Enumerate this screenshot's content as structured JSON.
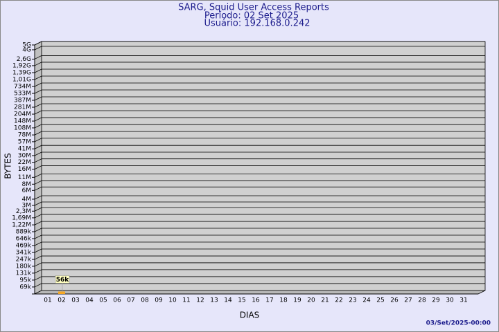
{
  "chart_data": {
    "type": "bar",
    "title": "SARG, Squid User Access Reports",
    "subtitle": [
      "Período: 02 Set 2025",
      "Usuário: 192.168.0.242"
    ],
    "x_label": "DIAS",
    "y_label": "BYTES",
    "footer": "03/Set/2025-00:00",
    "categories": [
      "01",
      "02",
      "03",
      "04",
      "05",
      "06",
      "07",
      "08",
      "09",
      "10",
      "11",
      "12",
      "13",
      "14",
      "15",
      "16",
      "17",
      "18",
      "19",
      "20",
      "21",
      "22",
      "23",
      "24",
      "25",
      "26",
      "27",
      "28",
      "29",
      "30",
      "31"
    ],
    "values": [
      null,
      56000,
      null,
      null,
      null,
      null,
      null,
      null,
      null,
      null,
      null,
      null,
      null,
      null,
      null,
      null,
      null,
      null,
      null,
      null,
      null,
      null,
      null,
      null,
      null,
      null,
      null,
      null,
      null,
      null,
      null
    ],
    "value_labels": [
      null,
      "56k",
      null,
      null,
      null,
      null,
      null,
      null,
      null,
      null,
      null,
      null,
      null,
      null,
      null,
      null,
      null,
      null,
      null,
      null,
      null,
      null,
      null,
      null,
      null,
      null,
      null,
      null,
      null,
      null,
      null
    ],
    "color": "#f5a623",
    "log_scale": true,
    "ylim": [
      50000,
      5000000000
    ],
    "yticks": [
      {
        "value": 5000000000,
        "label": "5G"
      },
      {
        "value": 4000000000,
        "label": "4G"
      },
      {
        "value": 2600000000,
        "label": "2,6G"
      },
      {
        "value": 1920000000,
        "label": "1,92G"
      },
      {
        "value": 1390000000,
        "label": "1,39G"
      },
      {
        "value": 1010000000,
        "label": "1,01G"
      },
      {
        "value": 734000000,
        "label": "734M"
      },
      {
        "value": 533000000,
        "label": "533M"
      },
      {
        "value": 387000000,
        "label": "387M"
      },
      {
        "value": 281000000,
        "label": "281M"
      },
      {
        "value": 204000000,
        "label": "204M"
      },
      {
        "value": 148000000,
        "label": "148M"
      },
      {
        "value": 108000000,
        "label": "108M"
      },
      {
        "value": 78000000,
        "label": "78M"
      },
      {
        "value": 57000000,
        "label": "57M"
      },
      {
        "value": 41000000,
        "label": "41M"
      },
      {
        "value": 30000000,
        "label": "30M"
      },
      {
        "value": 22000000,
        "label": "22M"
      },
      {
        "value": 16000000,
        "label": "16M"
      },
      {
        "value": 11000000,
        "label": "11M"
      },
      {
        "value": 8000000,
        "label": "8M"
      },
      {
        "value": 6000000,
        "label": "6M"
      },
      {
        "value": 4000000,
        "label": "4M"
      },
      {
        "value": 3000000,
        "label": "3M"
      },
      {
        "value": 2300000,
        "label": "2,3M"
      },
      {
        "value": 1690000,
        "label": "1,69M"
      },
      {
        "value": 1220000,
        "label": "1,22M"
      },
      {
        "value": 889000,
        "label": "889k"
      },
      {
        "value": 646000,
        "label": "646k"
      },
      {
        "value": 469000,
        "label": "469k"
      },
      {
        "value": 341000,
        "label": "341k"
      },
      {
        "value": 247000,
        "label": "247k"
      },
      {
        "value": 180000,
        "label": "180k"
      },
      {
        "value": 131000,
        "label": "131k"
      },
      {
        "value": 95000,
        "label": "95k"
      },
      {
        "value": 69000,
        "label": "69k"
      }
    ],
    "grid": true
  }
}
